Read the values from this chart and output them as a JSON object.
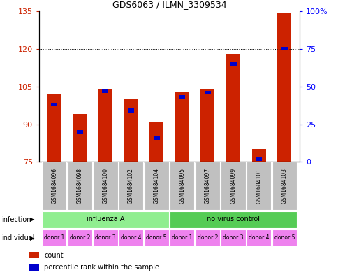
{
  "title": "GDS6063 / ILMN_3309534",
  "samples": [
    "GSM1684096",
    "GSM1684098",
    "GSM1684100",
    "GSM1684102",
    "GSM1684104",
    "GSM1684095",
    "GSM1684097",
    "GSM1684099",
    "GSM1684101",
    "GSM1684103"
  ],
  "count_values": [
    102,
    94,
    104,
    100,
    91,
    103,
    104,
    118,
    80,
    134
  ],
  "percentile_values": [
    38,
    20,
    47,
    34,
    16,
    43,
    46,
    65,
    2,
    75
  ],
  "y_min": 75,
  "y_max": 135,
  "y_ticks": [
    75,
    90,
    105,
    120,
    135
  ],
  "y2_ticks": [
    0,
    25,
    50,
    75,
    100
  ],
  "infection_groups": [
    {
      "label": "influenza A",
      "start": 0,
      "end": 5,
      "color": "#90EE90"
    },
    {
      "label": "no virus control",
      "start": 5,
      "end": 10,
      "color": "#55CC55"
    }
  ],
  "individual_labels": [
    "donor 1",
    "donor 2",
    "donor 3",
    "donor 4",
    "donor 5",
    "donor 1",
    "donor 2",
    "donor 3",
    "donor 4",
    "donor 5"
  ],
  "individual_color": "#EE82EE",
  "bar_color": "#CC2200",
  "blue_color": "#0000CC",
  "sample_bg_color": "#C0C0C0",
  "legend_count_label": "count",
  "legend_pct_label": "percentile rank within the sample",
  "infection_label": "infection",
  "individual_label": "individual"
}
